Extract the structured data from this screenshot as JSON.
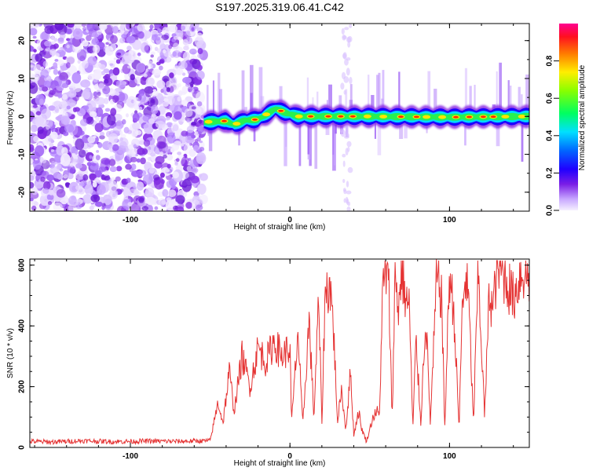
{
  "title": "S197.2025.319.06.41.C42",
  "chart_data": [
    {
      "type": "heatmap",
      "title": "S197.2025.319.06.41.C42",
      "xlabel": "Height of straight line (km)",
      "ylabel": "Frequency (Hz)",
      "xlim": [
        -163,
        150
      ],
      "ylim": [
        -25,
        24.5
      ],
      "xticks": [
        -100,
        0,
        100
      ],
      "yticks": [
        -20,
        -10,
        0,
        10,
        20
      ],
      "grid": false,
      "colorbar": {
        "label": "Normalized spectral amplitude",
        "range": [
          0,
          1
        ],
        "ticks": [
          "0.0",
          "0.2",
          "0.4",
          "0.6",
          "0.8"
        ],
        "colors": [
          "#ffffff",
          "#d8b8ff",
          "#8a2be2",
          "#0000ff",
          "#00ffff",
          "#00ff00",
          "#ffff00",
          "#ff8800",
          "#ff0000",
          "#ff00aa"
        ]
      },
      "regions": [
        {
          "name": "noise",
          "x_range": [
            -163,
            -54
          ],
          "description_level": 0.25
        },
        {
          "name": "signal_band",
          "x_range": [
            -54,
            150
          ],
          "center_frequency": [
            {
              "x": -54,
              "y": -1.5
            },
            {
              "x": -40,
              "y": -1.2
            },
            {
              "x": -35,
              "y": -2.2
            },
            {
              "x": -28,
              "y": -1.0
            },
            {
              "x": -20,
              "y": -0.8
            },
            {
              "x": -13,
              "y": 1.0
            },
            {
              "x": -9,
              "y": 2.0
            },
            {
              "x": -3,
              "y": 1.0
            },
            {
              "x": 5,
              "y": 0.0
            },
            {
              "x": 50,
              "y": 0.0
            },
            {
              "x": 100,
              "y": -0.2
            },
            {
              "x": 150,
              "y": 0.0
            }
          ]
        }
      ]
    },
    {
      "type": "line",
      "xlabel": "Height of straight line (km)",
      "ylabel": "SNR (10 * v/v)",
      "xlim": [
        -163,
        150
      ],
      "ylim": [
        0,
        620
      ],
      "xticks": [
        -100,
        0,
        100
      ],
      "yticks": [
        0,
        200,
        400,
        600
      ],
      "grid": false,
      "series": [
        {
          "name": "SNR",
          "color": "#e53333",
          "x": [
            -163,
            -150,
            -130,
            -110,
            -90,
            -70,
            -50,
            -45,
            -42,
            -38,
            -35,
            -30,
            -25,
            -20,
            -15,
            -10,
            -5,
            0,
            1,
            5,
            8,
            12,
            15,
            18,
            20,
            22,
            25,
            27,
            30,
            32,
            35,
            38,
            40,
            43,
            45,
            48,
            52,
            55,
            56,
            58,
            60,
            62,
            64,
            66,
            68,
            70,
            72,
            75,
            77,
            79,
            82,
            85,
            88,
            92,
            95,
            97,
            100,
            103,
            106,
            108,
            110,
            112,
            115,
            118,
            122,
            125,
            127,
            130,
            135,
            140,
            145,
            150
          ],
          "y": [
            20,
            18,
            22,
            19,
            21,
            20,
            22,
            150,
            80,
            250,
            120,
            300,
            200,
            330,
            280,
            350,
            300,
            330,
            80,
            380,
            70,
            420,
            100,
            480,
            80,
            500,
            540,
            420,
            70,
            200,
            60,
            250,
            40,
            120,
            60,
            20,
            100,
            120,
            90,
            500,
            580,
            520,
            100,
            580,
            450,
            600,
            500,
            450,
            60,
            350,
            80,
            440,
            80,
            560,
            500,
            60,
            580,
            420,
            60,
            460,
            560,
            480,
            80,
            580,
            100,
            520,
            450,
            600,
            560,
            490,
            580,
            560
          ]
        }
      ]
    }
  ]
}
